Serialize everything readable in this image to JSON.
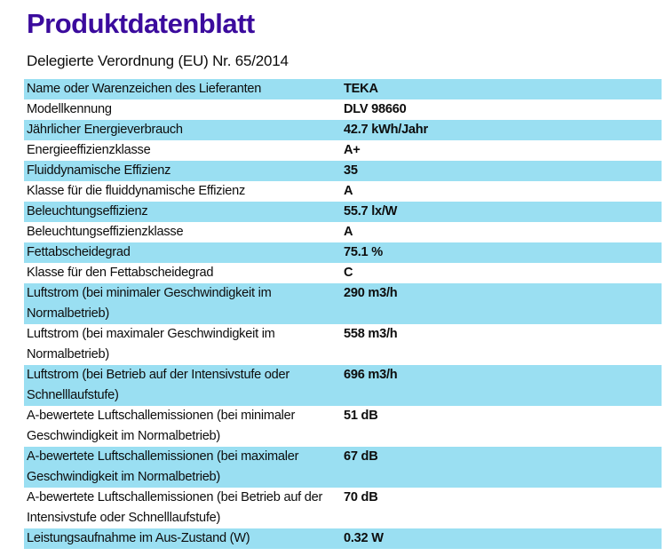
{
  "page": {
    "title": "Produktdatenblatt",
    "subtitle": "Delegierte Verordnung (EU) Nr. 65/2014"
  },
  "colors": {
    "title_text": "#3b0b9d",
    "row_highlight": "#9adff2",
    "body_text": "#0d0d0d",
    "background": "#ffffff"
  },
  "table": {
    "rows": [
      {
        "label": "Name oder Warenzeichen des Lieferanten",
        "value": "TEKA",
        "highlight": true
      },
      {
        "label": "Modellkennung",
        "value": "DLV 98660",
        "highlight": false
      },
      {
        "label": "Jährlicher Energieverbrauch",
        "value": "42.7 kWh/Jahr",
        "highlight": true
      },
      {
        "label": "Energieeffizienzklasse",
        "value": "A+",
        "highlight": false
      },
      {
        "label": "Fluiddynamische Effizienz",
        "value": "35",
        "highlight": true
      },
      {
        "label": "Klasse für die fluiddynamische Effizienz",
        "value": "A",
        "highlight": false
      },
      {
        "label": "Beleuchtungseffizienz",
        "value": "55.7 lx/W",
        "highlight": true
      },
      {
        "label": "Beleuchtungseffizienzklasse",
        "value": "A",
        "highlight": false
      },
      {
        "label": "Fettabscheidegrad",
        "value": "75.1 %",
        "highlight": true
      },
      {
        "label": "Klasse für den Fettabscheidegrad",
        "value": "C",
        "highlight": false
      },
      {
        "label": "Luftstrom (bei minimaler Geschwindigkeit im Normalbetrieb)",
        "value": "290 m3/h",
        "highlight": true
      },
      {
        "label": "Luftstrom (bei maximaler Geschwindigkeit im Normalbetrieb)",
        "value": "558 m3/h",
        "highlight": false
      },
      {
        "label": "Luftstrom (bei Betrieb auf der Intensivstufe oder Schnelllaufstufe)",
        "value": "696 m3/h",
        "highlight": true
      },
      {
        "label": "A-bewertete Luftschallemissionen (bei minimaler Geschwindigkeit im Normalbetrieb)",
        "value": "51 dB",
        "highlight": false
      },
      {
        "label": "A-bewertete Luftschallemissionen (bei maximaler Geschwindigkeit im Normalbetrieb)",
        "value": "67 dB",
        "highlight": true
      },
      {
        "label": "A-bewertete Luftschallemissionen (bei Betrieb auf der Intensivstufe oder Schnelllaufstufe)",
        "value": "70 dB",
        "highlight": false
      },
      {
        "label": "Leistungsaufnahme im Aus-Zustand (W)",
        "value": "0.32 W",
        "highlight": true
      }
    ]
  }
}
